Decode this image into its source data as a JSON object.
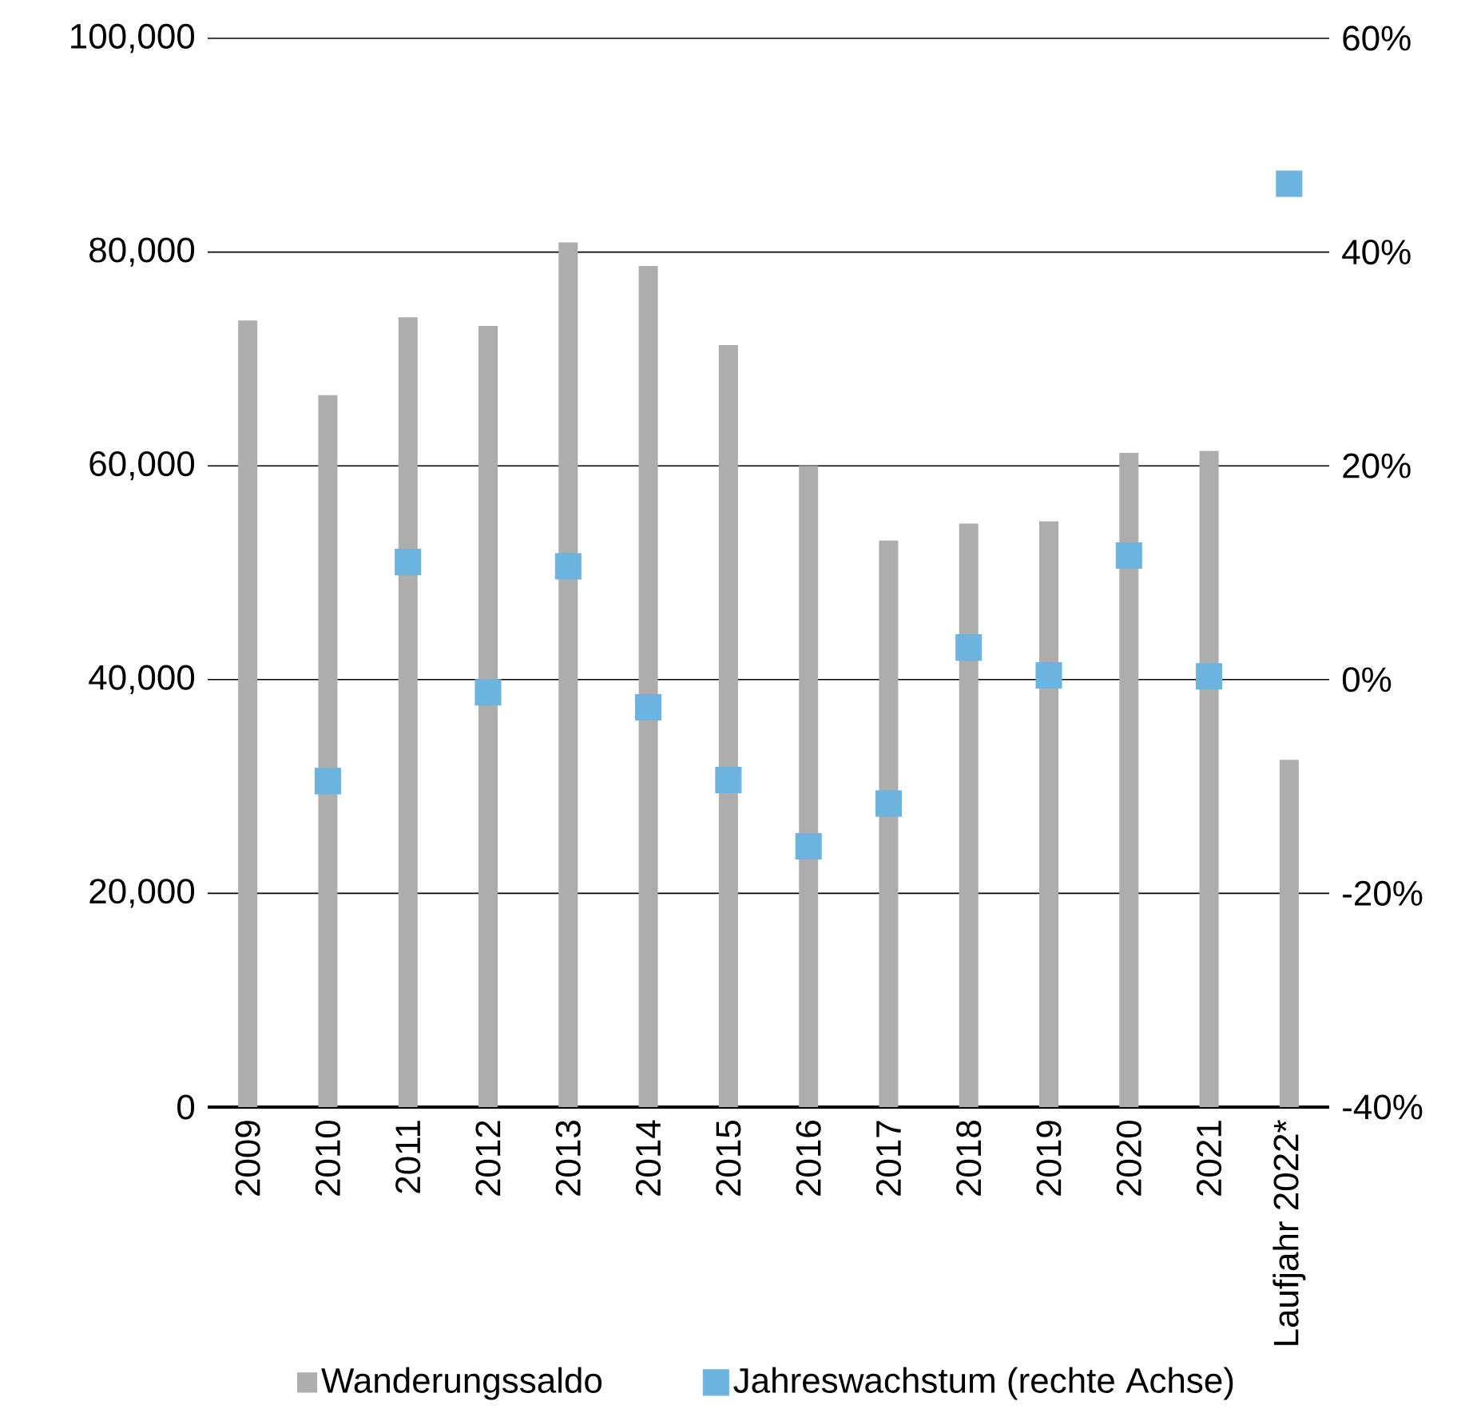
{
  "chart_data": {
    "type": "bar",
    "categories": [
      "2009",
      "2010",
      "2011",
      "2012",
      "2013",
      "2014",
      "2015",
      "2016",
      "2017",
      "2018",
      "2019",
      "2020",
      "2021",
      "Laufjahr 2022*"
    ],
    "series": [
      {
        "name": "Wanderungssaldo",
        "color": "#adadad",
        "values": [
          73600,
          66600,
          73900,
          73100,
          80900,
          78700,
          71300,
          60000,
          53000,
          54600,
          54800,
          61200,
          61400,
          32500
        ]
      },
      {
        "name": "Jahreswachstum (rechte Achse)",
        "type": "scatter",
        "axis": "y2",
        "marker": "square",
        "color": "#6cb4e0",
        "values": [
          null,
          -9.5,
          11.0,
          -1.2,
          10.6,
          -2.6,
          -9.4,
          -15.6,
          -11.6,
          3.0,
          0.4,
          11.6,
          0.3,
          46.4
        ]
      }
    ],
    "ylim": [
      0,
      100000
    ],
    "yticks": [
      {
        "value": 0,
        "label": "0"
      },
      {
        "value": 20000,
        "label": "20,000"
      },
      {
        "value": 40000,
        "label": "40,000"
      },
      {
        "value": 60000,
        "label": "60,000"
      },
      {
        "value": 80000,
        "label": "80,000"
      },
      {
        "value": 100000,
        "label": "100,000"
      }
    ],
    "y2lim": [
      -40,
      60
    ],
    "y2ticks": [
      {
        "value": -40,
        "label": "-40%"
      },
      {
        "value": -20,
        "label": "-20%"
      },
      {
        "value": 0,
        "label": "0%"
      },
      {
        "value": 20,
        "label": "20%"
      },
      {
        "value": 40,
        "label": "40%"
      },
      {
        "value": 60,
        "label": "60%"
      }
    ],
    "grid": "y",
    "legend": "bottom"
  }
}
